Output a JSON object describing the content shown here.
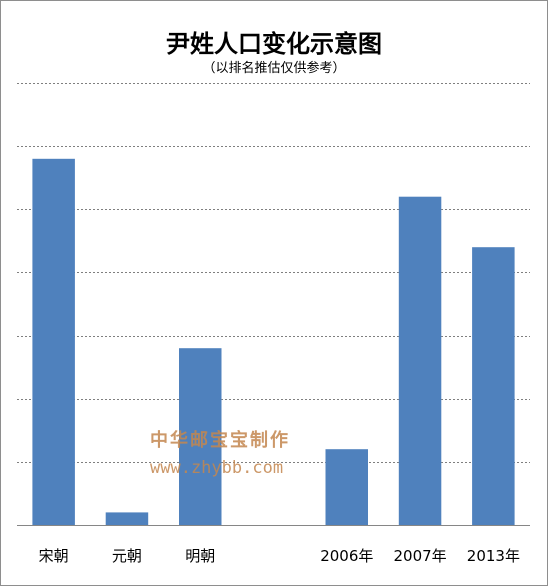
{
  "chart_data": {
    "type": "bar",
    "title": "尹姓人口变化示意图",
    "subtitle": "（以排名推估仅供参考）",
    "categories": [
      "宋朝",
      "元朝",
      "明朝",
      "",
      "2006年",
      "2007年",
      "2013年"
    ],
    "values": [
      5.8,
      0.2,
      2.8,
      null,
      1.2,
      5.2,
      4.4
    ],
    "ylim": [
      0,
      7
    ],
    "grid": true,
    "bar_color": "#4f81bd",
    "gridline_color": "#7f7f7f",
    "legend": "none"
  },
  "watermark": {
    "text_cn": "中华邮宝宝制作",
    "url": "www.zhybb.com",
    "color": "#c4874f"
  }
}
